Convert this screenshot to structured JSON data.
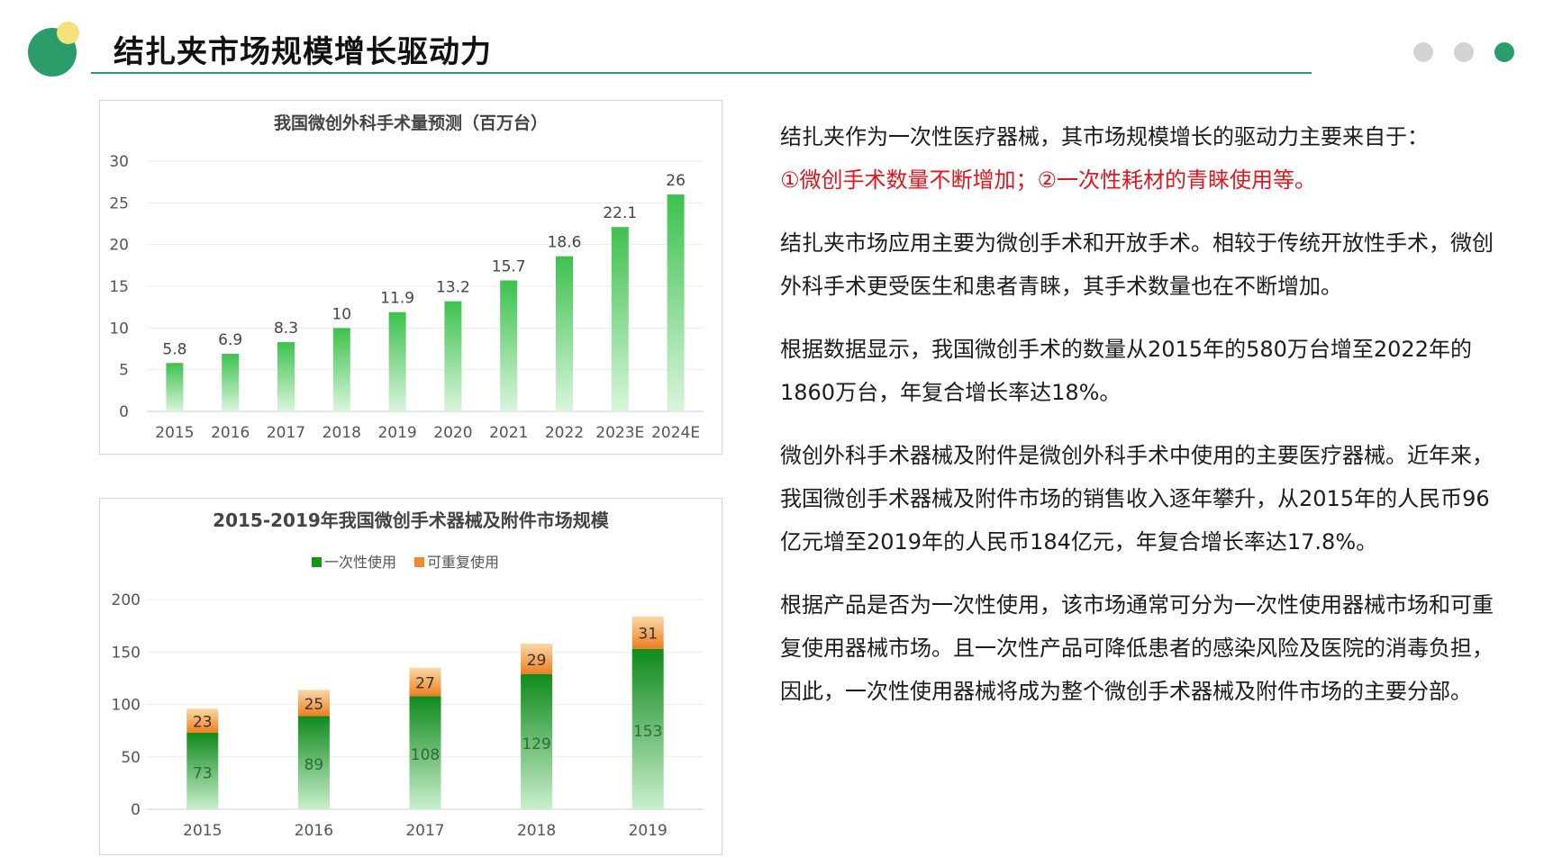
{
  "page": {
    "title": "结扎夹市场规模增长驱动力"
  },
  "colors": {
    "accent": "#2a9d6a",
    "logo_dot": "#f5e27a",
    "pager_inactive": "#d3d3d3",
    "pager_active": "#2a9d6a",
    "bar_green": "#4cc85a",
    "bar_dark_green": "#14931f",
    "bar_orange": "#f08c2e",
    "highlight_red": "#e3161c"
  },
  "pager": [
    {
      "state": "inactive"
    },
    {
      "state": "inactive"
    },
    {
      "state": "active"
    }
  ],
  "chart_data": [
    {
      "type": "bar",
      "title": "我国微创外科手术量预测（百万台）",
      "categories": [
        "2015",
        "2016",
        "2017",
        "2018",
        "2019",
        "2020",
        "2021",
        "2022",
        "2023E",
        "2024E"
      ],
      "values": [
        5.8,
        6.9,
        8.3,
        10,
        11.9,
        13.2,
        15.7,
        18.6,
        22.1,
        26
      ],
      "yticks": [
        "0",
        "5",
        "10",
        "15",
        "20",
        "25",
        "30"
      ],
      "ylim": [
        0,
        30
      ],
      "grid": true,
      "color": "#4cc85a"
    },
    {
      "type": "bar",
      "stacked": true,
      "title": "2015-2019年我国微创手术器械及附件市场规模",
      "categories": [
        "2015",
        "2016",
        "2017",
        "2018",
        "2019"
      ],
      "series": [
        {
          "name": "一次性使用",
          "values": [
            73,
            89,
            108,
            129,
            153
          ],
          "color": "#14931f"
        },
        {
          "name": "可重复使用",
          "values": [
            23,
            25,
            27,
            29,
            31
          ],
          "color": "#f08c2e"
        }
      ],
      "yticks": [
        "0",
        "50",
        "100",
        "150",
        "200"
      ],
      "ylim": [
        0,
        200
      ],
      "grid": true,
      "legend": "top"
    }
  ],
  "text": {
    "p1_intro": "结扎夹作为一次性医疗器械，其市场规模增长的驱动力主要来自于：",
    "p1_highlight": "①微创手术数量不断增加；②一次性耗材的青睐使用等。",
    "p2": "结扎夹市场应用主要为微创手术和开放手术。相较于传统开放性手术，微创外科手术更受医生和患者青睐，其手术数量也在不断增加。",
    "p3": "根据数据显示，我国微创手术的数量从2015年的580万台增至2022年的1860万台，年复合增长率达18%。",
    "p4": "微创外科手术器械及附件是微创外科手术中使用的主要医疗器械。近年来，我国微创手术器械及附件市场的销售收入逐年攀升，从2015年的人民币96亿元增至2019年的人民币184亿元，年复合增长率达17.8%。",
    "p5": "根据产品是否为一次性使用，该市场通常可分为一次性使用器械市场和可重复使用器械市场。且一次性产品可降低患者的感染风险及医院的消毒负担，因此，一次性使用器械将成为整个微创手术器械及附件市场的主要分部。"
  }
}
